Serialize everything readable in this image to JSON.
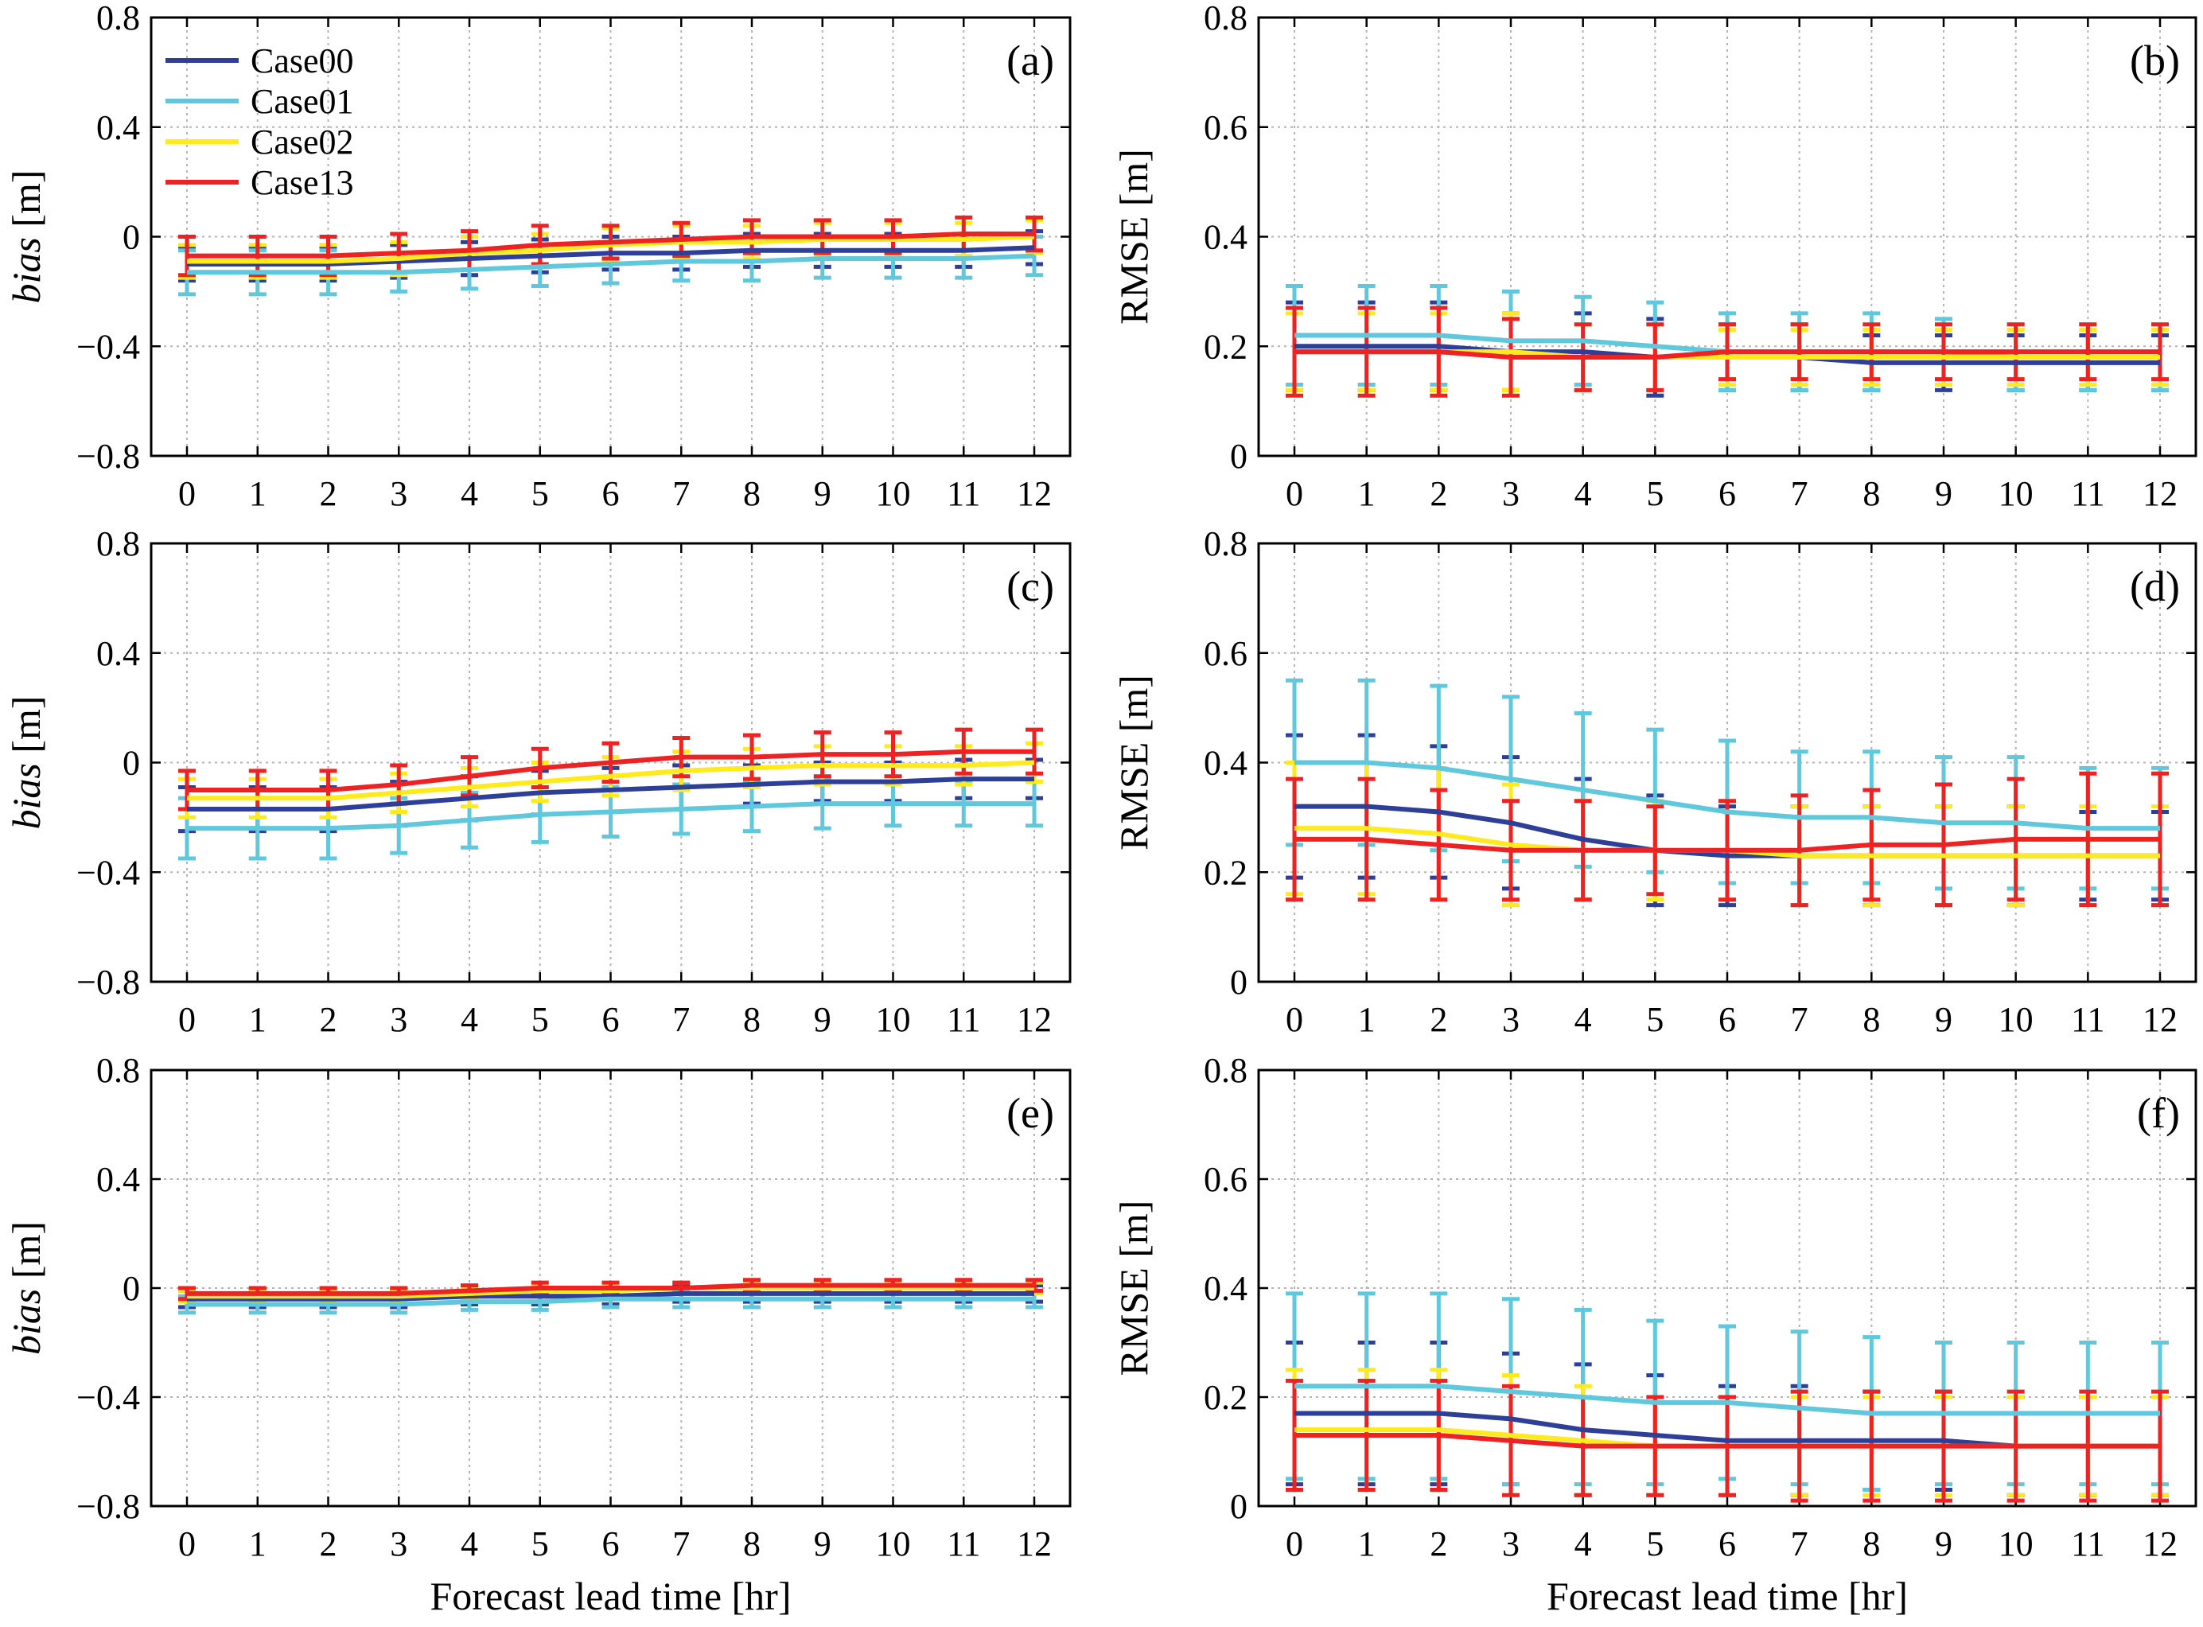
{
  "figure": {
    "x_tick_labels": [
      "0",
      "1",
      "2",
      "3",
      "4",
      "5",
      "6",
      "7",
      "8",
      "9",
      "10",
      "11",
      "12"
    ]
  },
  "chart_data": [
    {
      "type": "line",
      "panel_label": "(a)",
      "ylabel": "bias [m]",
      "ylabel_italic_part": "bias",
      "ylabel_unit": "[m]",
      "xlabel": "",
      "ylim": [
        -0.8,
        0.8
      ],
      "y_ticks": [
        -0.8,
        -0.4,
        0,
        0.4,
        0.8
      ],
      "y_tick_labels": [
        "−0.8",
        "−0.4",
        "0",
        "0.4",
        "0.8"
      ],
      "x": [
        0,
        1,
        2,
        3,
        4,
        5,
        6,
        7,
        8,
        9,
        10,
        11,
        12
      ],
      "grid": true,
      "legend": "top-left",
      "series": [
        {
          "name": "Case00",
          "values": [
            -0.1,
            -0.1,
            -0.1,
            -0.09,
            -0.08,
            -0.07,
            -0.06,
            -0.06,
            -0.05,
            -0.05,
            -0.05,
            -0.05,
            -0.04
          ],
          "err": [
            0.06,
            0.06,
            0.06,
            0.06,
            0.06,
            0.06,
            0.06,
            0.06,
            0.06,
            0.06,
            0.06,
            0.06,
            0.06
          ]
        },
        {
          "name": "Case01",
          "values": [
            -0.13,
            -0.13,
            -0.13,
            -0.13,
            -0.12,
            -0.11,
            -0.1,
            -0.09,
            -0.09,
            -0.08,
            -0.08,
            -0.08,
            -0.07
          ],
          "err": [
            0.08,
            0.08,
            0.08,
            0.07,
            0.07,
            0.07,
            0.07,
            0.07,
            0.07,
            0.07,
            0.07,
            0.07,
            0.07
          ]
        },
        {
          "name": "Case02",
          "values": [
            -0.09,
            -0.09,
            -0.09,
            -0.08,
            -0.06,
            -0.05,
            -0.03,
            -0.02,
            -0.02,
            -0.01,
            -0.01,
            -0.01,
            0.0
          ],
          "err": [
            0.06,
            0.06,
            0.06,
            0.06,
            0.06,
            0.06,
            0.06,
            0.06,
            0.06,
            0.06,
            0.06,
            0.06,
            0.06
          ]
        },
        {
          "name": "Case13",
          "values": [
            -0.07,
            -0.07,
            -0.07,
            -0.06,
            -0.05,
            -0.03,
            -0.02,
            -0.01,
            0.0,
            0.0,
            0.0,
            0.01,
            0.01
          ],
          "err": [
            0.07,
            0.07,
            0.07,
            0.07,
            0.07,
            0.07,
            0.06,
            0.06,
            0.06,
            0.06,
            0.06,
            0.06,
            0.06
          ]
        }
      ]
    },
    {
      "type": "line",
      "panel_label": "(b)",
      "ylabel": "RMSE [m]",
      "ylabel_italic_part": "",
      "ylabel_unit": "RMSE [m]",
      "xlabel": "",
      "ylim": [
        0,
        0.8
      ],
      "y_ticks": [
        0,
        0.2,
        0.4,
        0.6,
        0.8
      ],
      "y_tick_labels": [
        "0",
        "0.2",
        "0.4",
        "0.6",
        "0.8"
      ],
      "x": [
        0,
        1,
        2,
        3,
        4,
        5,
        6,
        7,
        8,
        9,
        10,
        11,
        12
      ],
      "grid": true,
      "series": [
        {
          "name": "Case00",
          "values": [
            0.2,
            0.2,
            0.2,
            0.19,
            0.19,
            0.18,
            0.18,
            0.18,
            0.17,
            0.17,
            0.17,
            0.17,
            0.17
          ],
          "err": [
            0.08,
            0.08,
            0.08,
            0.07,
            0.07,
            0.07,
            0.06,
            0.06,
            0.05,
            0.05,
            0.05,
            0.05,
            0.05
          ]
        },
        {
          "name": "Case01",
          "values": [
            0.22,
            0.22,
            0.22,
            0.21,
            0.21,
            0.2,
            0.19,
            0.19,
            0.19,
            0.19,
            0.18,
            0.18,
            0.18
          ],
          "err": [
            0.09,
            0.09,
            0.09,
            0.09,
            0.08,
            0.08,
            0.07,
            0.07,
            0.07,
            0.06,
            0.06,
            0.06,
            0.06
          ]
        },
        {
          "name": "Case02",
          "values": [
            0.19,
            0.19,
            0.19,
            0.19,
            0.18,
            0.18,
            0.18,
            0.18,
            0.18,
            0.18,
            0.18,
            0.18,
            0.18
          ],
          "err": [
            0.07,
            0.07,
            0.07,
            0.07,
            0.06,
            0.06,
            0.05,
            0.05,
            0.05,
            0.05,
            0.05,
            0.05,
            0.05
          ]
        },
        {
          "name": "Case13",
          "values": [
            0.19,
            0.19,
            0.19,
            0.18,
            0.18,
            0.18,
            0.19,
            0.19,
            0.19,
            0.19,
            0.19,
            0.19,
            0.19
          ],
          "err": [
            0.08,
            0.08,
            0.08,
            0.07,
            0.06,
            0.06,
            0.05,
            0.05,
            0.05,
            0.05,
            0.05,
            0.05,
            0.05
          ]
        }
      ]
    },
    {
      "type": "line",
      "panel_label": "(c)",
      "ylabel": "bias [m]",
      "ylabel_italic_part": "bias",
      "ylabel_unit": "[m]",
      "xlabel": "",
      "ylim": [
        -0.8,
        0.8
      ],
      "y_ticks": [
        -0.8,
        -0.4,
        0,
        0.4,
        0.8
      ],
      "y_tick_labels": [
        "−0.8",
        "−0.4",
        "0",
        "0.4",
        "0.8"
      ],
      "x": [
        0,
        1,
        2,
        3,
        4,
        5,
        6,
        7,
        8,
        9,
        10,
        11,
        12
      ],
      "grid": true,
      "series": [
        {
          "name": "Case00",
          "values": [
            -0.17,
            -0.17,
            -0.17,
            -0.15,
            -0.13,
            -0.11,
            -0.1,
            -0.09,
            -0.08,
            -0.07,
            -0.07,
            -0.06,
            -0.06
          ],
          "err": [
            0.08,
            0.08,
            0.08,
            0.08,
            0.08,
            0.08,
            0.08,
            0.08,
            0.07,
            0.07,
            0.07,
            0.07,
            0.07
          ]
        },
        {
          "name": "Case01",
          "values": [
            -0.24,
            -0.24,
            -0.24,
            -0.23,
            -0.21,
            -0.19,
            -0.18,
            -0.17,
            -0.16,
            -0.15,
            -0.15,
            -0.15,
            -0.15
          ],
          "err": [
            0.11,
            0.11,
            0.11,
            0.1,
            0.1,
            0.1,
            0.09,
            0.09,
            0.09,
            0.09,
            0.08,
            0.08,
            0.08
          ]
        },
        {
          "name": "Case02",
          "values": [
            -0.13,
            -0.13,
            -0.13,
            -0.11,
            -0.09,
            -0.07,
            -0.05,
            -0.03,
            -0.02,
            -0.01,
            -0.01,
            -0.01,
            0.0
          ],
          "err": [
            0.07,
            0.07,
            0.07,
            0.07,
            0.07,
            0.07,
            0.07,
            0.07,
            0.07,
            0.07,
            0.07,
            0.07,
            0.07
          ]
        },
        {
          "name": "Case13",
          "values": [
            -0.1,
            -0.1,
            -0.1,
            -0.08,
            -0.05,
            -0.02,
            0.0,
            0.02,
            0.02,
            0.03,
            0.03,
            0.04,
            0.04
          ],
          "err": [
            0.07,
            0.07,
            0.07,
            0.07,
            0.07,
            0.07,
            0.07,
            0.07,
            0.08,
            0.08,
            0.08,
            0.08,
            0.08
          ]
        }
      ]
    },
    {
      "type": "line",
      "panel_label": "(d)",
      "ylabel": "RMSE [m]",
      "ylabel_italic_part": "",
      "ylabel_unit": "RMSE [m]",
      "xlabel": "",
      "ylim": [
        0,
        0.8
      ],
      "y_ticks": [
        0,
        0.2,
        0.4,
        0.6,
        0.8
      ],
      "y_tick_labels": [
        "0",
        "0.2",
        "0.4",
        "0.6",
        "0.8"
      ],
      "x": [
        0,
        1,
        2,
        3,
        4,
        5,
        6,
        7,
        8,
        9,
        10,
        11,
        12
      ],
      "grid": true,
      "series": [
        {
          "name": "Case00",
          "values": [
            0.32,
            0.32,
            0.31,
            0.29,
            0.26,
            0.24,
            0.23,
            0.23,
            0.23,
            0.23,
            0.23,
            0.23,
            0.23
          ],
          "err": [
            0.13,
            0.13,
            0.12,
            0.12,
            0.11,
            0.1,
            0.09,
            0.09,
            0.09,
            0.09,
            0.09,
            0.08,
            0.08
          ]
        },
        {
          "name": "Case01",
          "values": [
            0.4,
            0.4,
            0.39,
            0.37,
            0.35,
            0.33,
            0.31,
            0.3,
            0.3,
            0.29,
            0.29,
            0.28,
            0.28
          ],
          "err": [
            0.15,
            0.15,
            0.15,
            0.15,
            0.14,
            0.13,
            0.13,
            0.12,
            0.12,
            0.12,
            0.12,
            0.11,
            0.11
          ]
        },
        {
          "name": "Case02",
          "values": [
            0.28,
            0.28,
            0.27,
            0.25,
            0.24,
            0.24,
            0.24,
            0.23,
            0.23,
            0.23,
            0.23,
            0.23,
            0.23
          ],
          "err": [
            0.12,
            0.12,
            0.12,
            0.11,
            0.09,
            0.09,
            0.09,
            0.09,
            0.09,
            0.09,
            0.09,
            0.09,
            0.09
          ]
        },
        {
          "name": "Case13",
          "values": [
            0.26,
            0.26,
            0.25,
            0.24,
            0.24,
            0.24,
            0.24,
            0.24,
            0.25,
            0.25,
            0.26,
            0.26,
            0.26
          ],
          "err": [
            0.11,
            0.11,
            0.1,
            0.09,
            0.09,
            0.08,
            0.09,
            0.1,
            0.1,
            0.11,
            0.11,
            0.12,
            0.12
          ]
        }
      ]
    },
    {
      "type": "line",
      "panel_label": "(e)",
      "ylabel": "bias [m]",
      "ylabel_italic_part": "bias",
      "ylabel_unit": "[m]",
      "xlabel": "Forecast lead time [hr]",
      "ylim": [
        -0.8,
        0.8
      ],
      "y_ticks": [
        -0.8,
        -0.4,
        0,
        0.4,
        0.8
      ],
      "y_tick_labels": [
        "−0.8",
        "−0.4",
        "0",
        "0.4",
        "0.8"
      ],
      "x": [
        0,
        1,
        2,
        3,
        4,
        5,
        6,
        7,
        8,
        9,
        10,
        11,
        12
      ],
      "grid": true,
      "series": [
        {
          "name": "Case00",
          "values": [
            -0.04,
            -0.04,
            -0.04,
            -0.04,
            -0.03,
            -0.03,
            -0.03,
            -0.02,
            -0.02,
            -0.02,
            -0.02,
            -0.02,
            -0.02
          ],
          "err": [
            0.03,
            0.03,
            0.03,
            0.03,
            0.03,
            0.03,
            0.03,
            0.03,
            0.03,
            0.03,
            0.03,
            0.03,
            0.03
          ]
        },
        {
          "name": "Case01",
          "values": [
            -0.06,
            -0.06,
            -0.06,
            -0.06,
            -0.05,
            -0.05,
            -0.04,
            -0.04,
            -0.04,
            -0.04,
            -0.04,
            -0.04,
            -0.04
          ],
          "err": [
            0.03,
            0.03,
            0.03,
            0.03,
            0.03,
            0.03,
            0.03,
            0.03,
            0.03,
            0.03,
            0.03,
            0.03,
            0.03
          ]
        },
        {
          "name": "Case02",
          "values": [
            -0.03,
            -0.03,
            -0.03,
            -0.03,
            -0.02,
            -0.01,
            -0.01,
            0.0,
            0.0,
            0.0,
            0.0,
            0.0,
            0.0
          ],
          "err": [
            0.02,
            0.02,
            0.02,
            0.02,
            0.02,
            0.02,
            0.02,
            0.02,
            0.02,
            0.02,
            0.02,
            0.02,
            0.02
          ]
        },
        {
          "name": "Case13",
          "values": [
            -0.02,
            -0.02,
            -0.02,
            -0.02,
            -0.01,
            0.0,
            0.0,
            0.0,
            0.01,
            0.01,
            0.01,
            0.01,
            0.01
          ],
          "err": [
            0.02,
            0.02,
            0.02,
            0.02,
            0.02,
            0.02,
            0.02,
            0.02,
            0.02,
            0.02,
            0.02,
            0.02,
            0.02
          ]
        }
      ]
    },
    {
      "type": "line",
      "panel_label": "(f)",
      "ylabel": "RMSE [m]",
      "ylabel_italic_part": "",
      "ylabel_unit": "RMSE [m]",
      "xlabel": "Forecast lead time [hr]",
      "ylim": [
        0,
        0.8
      ],
      "y_ticks": [
        0,
        0.2,
        0.4,
        0.6,
        0.8
      ],
      "y_tick_labels": [
        "0",
        "0.2",
        "0.4",
        "0.6",
        "0.8"
      ],
      "x": [
        0,
        1,
        2,
        3,
        4,
        5,
        6,
        7,
        8,
        9,
        10,
        11,
        12
      ],
      "grid": true,
      "series": [
        {
          "name": "Case00",
          "values": [
            0.17,
            0.17,
            0.17,
            0.16,
            0.14,
            0.13,
            0.12,
            0.12,
            0.12,
            0.12,
            0.11,
            0.11,
            0.11
          ],
          "err": [
            0.13,
            0.13,
            0.13,
            0.12,
            0.12,
            0.11,
            0.1,
            0.1,
            0.09,
            0.09,
            0.09,
            0.09,
            0.09
          ]
        },
        {
          "name": "Case01",
          "values": [
            0.22,
            0.22,
            0.22,
            0.21,
            0.2,
            0.19,
            0.19,
            0.18,
            0.17,
            0.17,
            0.17,
            0.17,
            0.17
          ],
          "err": [
            0.17,
            0.17,
            0.17,
            0.17,
            0.16,
            0.15,
            0.14,
            0.14,
            0.14,
            0.13,
            0.13,
            0.13,
            0.13
          ]
        },
        {
          "name": "Case02",
          "values": [
            0.14,
            0.14,
            0.14,
            0.13,
            0.12,
            0.11,
            0.11,
            0.11,
            0.11,
            0.11,
            0.11,
            0.11,
            0.11
          ],
          "err": [
            0.11,
            0.11,
            0.11,
            0.11,
            0.1,
            0.09,
            0.09,
            0.09,
            0.09,
            0.09,
            0.09,
            0.09,
            0.09
          ]
        },
        {
          "name": "Case13",
          "values": [
            0.13,
            0.13,
            0.13,
            0.12,
            0.11,
            0.11,
            0.11,
            0.11,
            0.11,
            0.11,
            0.11,
            0.11,
            0.11
          ],
          "err": [
            0.1,
            0.1,
            0.1,
            0.1,
            0.09,
            0.09,
            0.09,
            0.1,
            0.1,
            0.1,
            0.1,
            0.1,
            0.1
          ]
        }
      ]
    }
  ],
  "legend": {
    "entries": [
      {
        "name": "Case00",
        "color": "#2e3f99"
      },
      {
        "name": "Case01",
        "color": "#5fc8dc"
      },
      {
        "name": "Case02",
        "color": "#ffea1c"
      },
      {
        "name": "Case13",
        "color": "#ee2222"
      }
    ]
  },
  "colors": {
    "Case00": "#2e3f99",
    "Case01": "#5fc8dc",
    "Case02": "#ffea1c",
    "Case13": "#ee2222",
    "grid": "#b5b5b5",
    "axis": "#000000"
  }
}
